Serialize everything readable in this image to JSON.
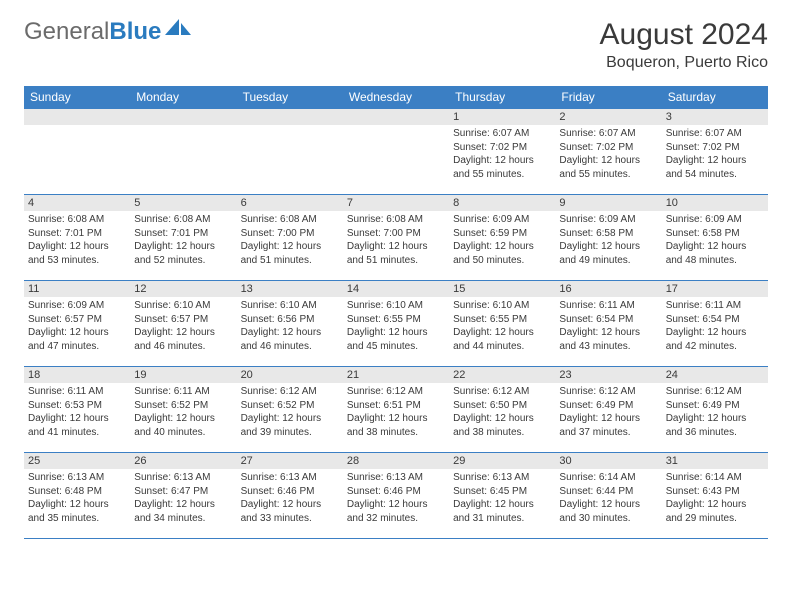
{
  "logo": {
    "text_gray": "General",
    "text_blue": "Blue"
  },
  "header": {
    "title": "August 2024",
    "location": "Boqueron, Puerto Rico"
  },
  "colors": {
    "header_bg": "#3b7fc4",
    "header_text": "#ffffff",
    "daynum_bg": "#e8e8e8",
    "border": "#3b7fc4",
    "text": "#3a3a3a",
    "logo_gray": "#6b6b6b",
    "logo_blue": "#2a7bbf"
  },
  "day_headers": [
    "Sunday",
    "Monday",
    "Tuesday",
    "Wednesday",
    "Thursday",
    "Friday",
    "Saturday"
  ],
  "weeks": [
    [
      {
        "n": "",
        "sunrise": "",
        "sunset": "",
        "daylight": ""
      },
      {
        "n": "",
        "sunrise": "",
        "sunset": "",
        "daylight": ""
      },
      {
        "n": "",
        "sunrise": "",
        "sunset": "",
        "daylight": ""
      },
      {
        "n": "",
        "sunrise": "",
        "sunset": "",
        "daylight": ""
      },
      {
        "n": "1",
        "sunrise": "Sunrise: 6:07 AM",
        "sunset": "Sunset: 7:02 PM",
        "daylight": "Daylight: 12 hours and 55 minutes."
      },
      {
        "n": "2",
        "sunrise": "Sunrise: 6:07 AM",
        "sunset": "Sunset: 7:02 PM",
        "daylight": "Daylight: 12 hours and 55 minutes."
      },
      {
        "n": "3",
        "sunrise": "Sunrise: 6:07 AM",
        "sunset": "Sunset: 7:02 PM",
        "daylight": "Daylight: 12 hours and 54 minutes."
      }
    ],
    [
      {
        "n": "4",
        "sunrise": "Sunrise: 6:08 AM",
        "sunset": "Sunset: 7:01 PM",
        "daylight": "Daylight: 12 hours and 53 minutes."
      },
      {
        "n": "5",
        "sunrise": "Sunrise: 6:08 AM",
        "sunset": "Sunset: 7:01 PM",
        "daylight": "Daylight: 12 hours and 52 minutes."
      },
      {
        "n": "6",
        "sunrise": "Sunrise: 6:08 AM",
        "sunset": "Sunset: 7:00 PM",
        "daylight": "Daylight: 12 hours and 51 minutes."
      },
      {
        "n": "7",
        "sunrise": "Sunrise: 6:08 AM",
        "sunset": "Sunset: 7:00 PM",
        "daylight": "Daylight: 12 hours and 51 minutes."
      },
      {
        "n": "8",
        "sunrise": "Sunrise: 6:09 AM",
        "sunset": "Sunset: 6:59 PM",
        "daylight": "Daylight: 12 hours and 50 minutes."
      },
      {
        "n": "9",
        "sunrise": "Sunrise: 6:09 AM",
        "sunset": "Sunset: 6:58 PM",
        "daylight": "Daylight: 12 hours and 49 minutes."
      },
      {
        "n": "10",
        "sunrise": "Sunrise: 6:09 AM",
        "sunset": "Sunset: 6:58 PM",
        "daylight": "Daylight: 12 hours and 48 minutes."
      }
    ],
    [
      {
        "n": "11",
        "sunrise": "Sunrise: 6:09 AM",
        "sunset": "Sunset: 6:57 PM",
        "daylight": "Daylight: 12 hours and 47 minutes."
      },
      {
        "n": "12",
        "sunrise": "Sunrise: 6:10 AM",
        "sunset": "Sunset: 6:57 PM",
        "daylight": "Daylight: 12 hours and 46 minutes."
      },
      {
        "n": "13",
        "sunrise": "Sunrise: 6:10 AM",
        "sunset": "Sunset: 6:56 PM",
        "daylight": "Daylight: 12 hours and 46 minutes."
      },
      {
        "n": "14",
        "sunrise": "Sunrise: 6:10 AM",
        "sunset": "Sunset: 6:55 PM",
        "daylight": "Daylight: 12 hours and 45 minutes."
      },
      {
        "n": "15",
        "sunrise": "Sunrise: 6:10 AM",
        "sunset": "Sunset: 6:55 PM",
        "daylight": "Daylight: 12 hours and 44 minutes."
      },
      {
        "n": "16",
        "sunrise": "Sunrise: 6:11 AM",
        "sunset": "Sunset: 6:54 PM",
        "daylight": "Daylight: 12 hours and 43 minutes."
      },
      {
        "n": "17",
        "sunrise": "Sunrise: 6:11 AM",
        "sunset": "Sunset: 6:54 PM",
        "daylight": "Daylight: 12 hours and 42 minutes."
      }
    ],
    [
      {
        "n": "18",
        "sunrise": "Sunrise: 6:11 AM",
        "sunset": "Sunset: 6:53 PM",
        "daylight": "Daylight: 12 hours and 41 minutes."
      },
      {
        "n": "19",
        "sunrise": "Sunrise: 6:11 AM",
        "sunset": "Sunset: 6:52 PM",
        "daylight": "Daylight: 12 hours and 40 minutes."
      },
      {
        "n": "20",
        "sunrise": "Sunrise: 6:12 AM",
        "sunset": "Sunset: 6:52 PM",
        "daylight": "Daylight: 12 hours and 39 minutes."
      },
      {
        "n": "21",
        "sunrise": "Sunrise: 6:12 AM",
        "sunset": "Sunset: 6:51 PM",
        "daylight": "Daylight: 12 hours and 38 minutes."
      },
      {
        "n": "22",
        "sunrise": "Sunrise: 6:12 AM",
        "sunset": "Sunset: 6:50 PM",
        "daylight": "Daylight: 12 hours and 38 minutes."
      },
      {
        "n": "23",
        "sunrise": "Sunrise: 6:12 AM",
        "sunset": "Sunset: 6:49 PM",
        "daylight": "Daylight: 12 hours and 37 minutes."
      },
      {
        "n": "24",
        "sunrise": "Sunrise: 6:12 AM",
        "sunset": "Sunset: 6:49 PM",
        "daylight": "Daylight: 12 hours and 36 minutes."
      }
    ],
    [
      {
        "n": "25",
        "sunrise": "Sunrise: 6:13 AM",
        "sunset": "Sunset: 6:48 PM",
        "daylight": "Daylight: 12 hours and 35 minutes."
      },
      {
        "n": "26",
        "sunrise": "Sunrise: 6:13 AM",
        "sunset": "Sunset: 6:47 PM",
        "daylight": "Daylight: 12 hours and 34 minutes."
      },
      {
        "n": "27",
        "sunrise": "Sunrise: 6:13 AM",
        "sunset": "Sunset: 6:46 PM",
        "daylight": "Daylight: 12 hours and 33 minutes."
      },
      {
        "n": "28",
        "sunrise": "Sunrise: 6:13 AM",
        "sunset": "Sunset: 6:46 PM",
        "daylight": "Daylight: 12 hours and 32 minutes."
      },
      {
        "n": "29",
        "sunrise": "Sunrise: 6:13 AM",
        "sunset": "Sunset: 6:45 PM",
        "daylight": "Daylight: 12 hours and 31 minutes."
      },
      {
        "n": "30",
        "sunrise": "Sunrise: 6:14 AM",
        "sunset": "Sunset: 6:44 PM",
        "daylight": "Daylight: 12 hours and 30 minutes."
      },
      {
        "n": "31",
        "sunrise": "Sunrise: 6:14 AM",
        "sunset": "Sunset: 6:43 PM",
        "daylight": "Daylight: 12 hours and 29 minutes."
      }
    ]
  ]
}
